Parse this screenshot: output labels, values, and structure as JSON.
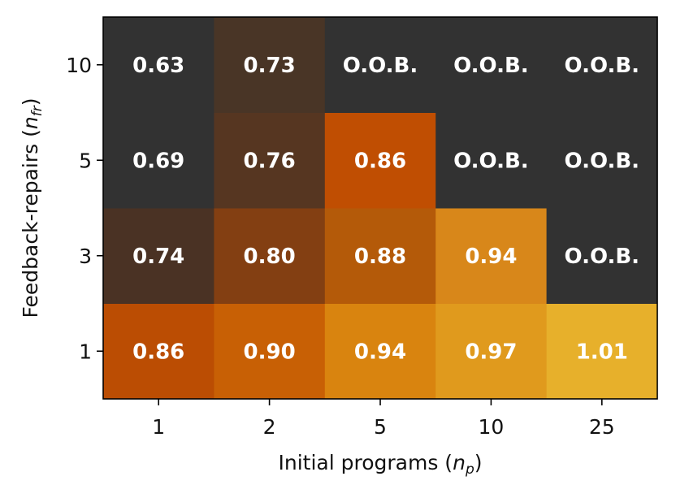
{
  "chart_data": {
    "type": "heatmap",
    "title": "",
    "xlabel": {
      "main": "Initial programs (",
      "var": "n",
      "sub": "p",
      "close": ")"
    },
    "ylabel": {
      "main": "Feedback-repairs (",
      "var": "n",
      "sub": "fr",
      "close": ")"
    },
    "x_categories": [
      "1",
      "2",
      "5",
      "10",
      "25"
    ],
    "y_categories": [
      "1",
      "3",
      "5",
      "10"
    ],
    "cells": [
      [
        "0.86",
        "0.90",
        "0.94",
        "0.97",
        "1.01"
      ],
      [
        "0.74",
        "0.80",
        "0.88",
        "0.94",
        "O.O.B."
      ],
      [
        "0.69",
        "0.76",
        "0.86",
        "O.O.B.",
        "O.O.B."
      ],
      [
        "0.63",
        "0.73",
        "O.O.B.",
        "O.O.B.",
        "O.O.B."
      ]
    ],
    "colors": [
      [
        "#bb4d03",
        "#c86005",
        "#d9840f",
        "#e09a1d",
        "#e7b02b"
      ],
      [
        "#4a3224",
        "#833f12",
        "#b45a09",
        "#d8871a",
        "#323232"
      ],
      [
        "#323232",
        "#563621",
        "#c04e02",
        "#323232",
        "#323232"
      ],
      [
        "#323232",
        "#493526",
        "#323232",
        "#323232",
        "#323232"
      ]
    ],
    "oob_color": "#323232",
    "grid": false,
    "legend": "none"
  }
}
